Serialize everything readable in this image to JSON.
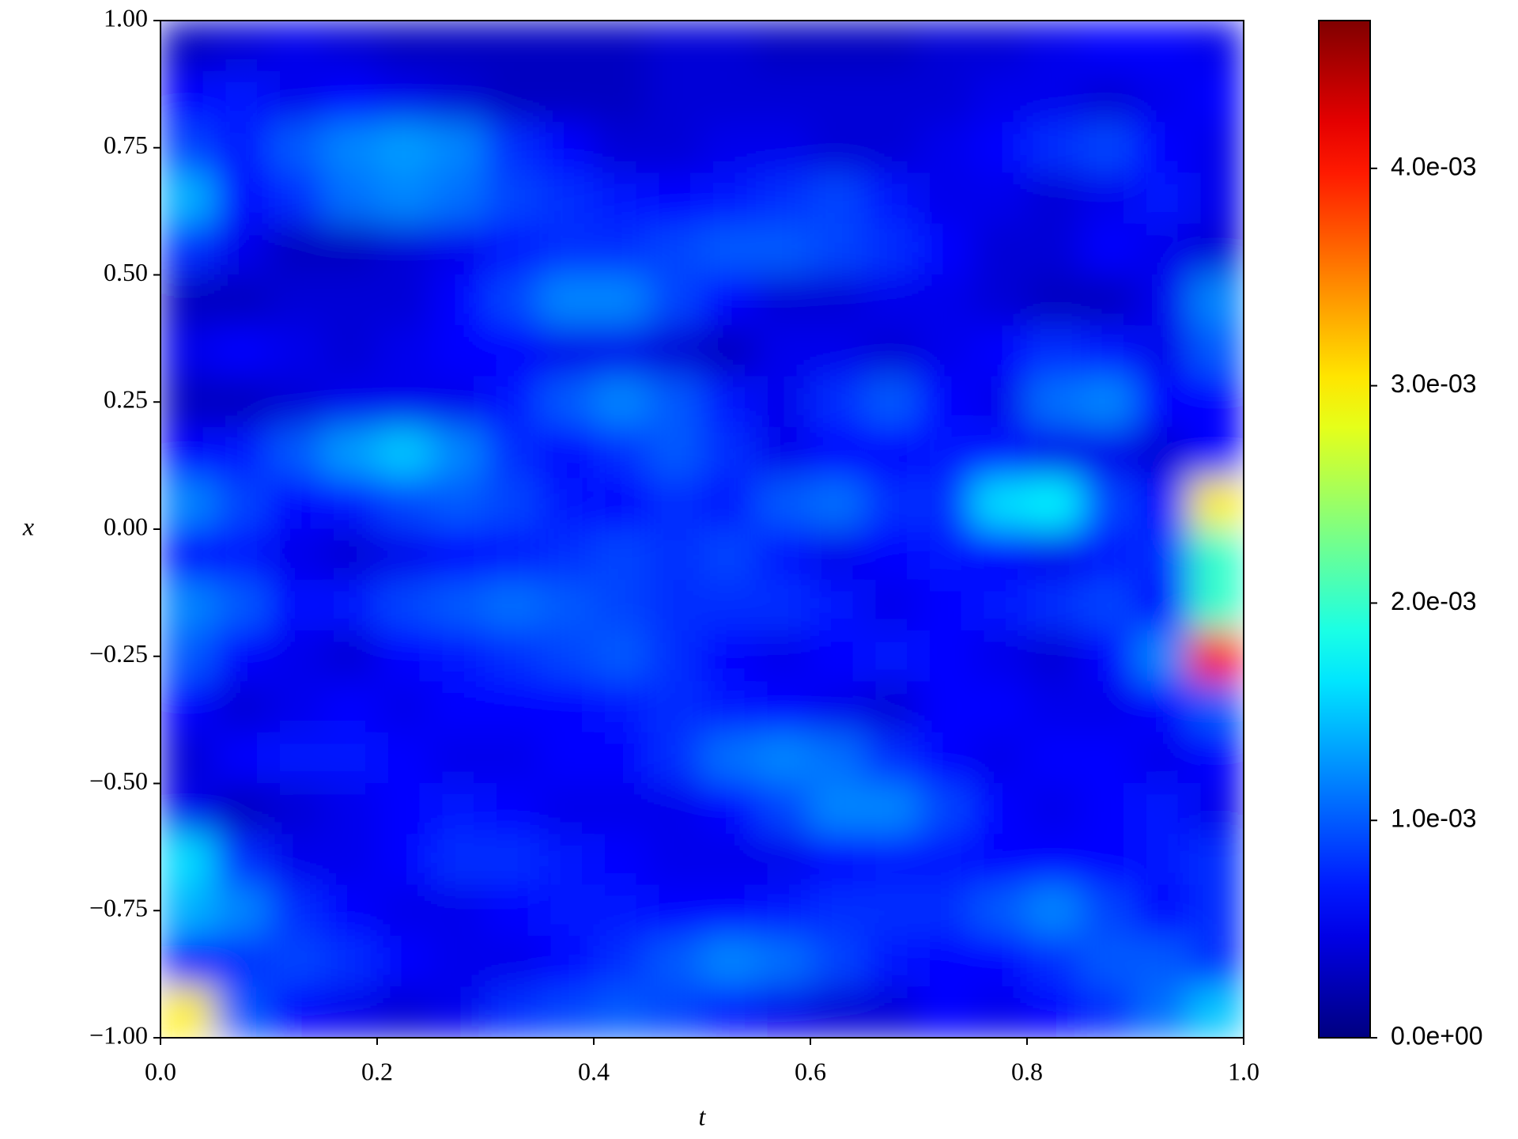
{
  "chart_data": {
    "type": "heatmap",
    "xlabel": "t",
    "ylabel": "x",
    "xlim": [
      0,
      1
    ],
    "ylim": [
      -1,
      1
    ],
    "xticks": [
      {
        "value": 0,
        "label": "0.0"
      },
      0.2,
      0.4,
      0.6,
      0.8,
      {
        "value": 1,
        "label": "1.0"
      }
    ],
    "yticks": [
      {
        "value": -1,
        "label": "−1.00"
      },
      {
        "value": -0.75,
        "label": "−0.75"
      },
      {
        "value": -0.5,
        "label": "−0.50"
      },
      {
        "value": -0.25,
        "label": "−0.25"
      },
      {
        "value": 0,
        "label": "0.00"
      },
      0.25,
      {
        "value": 0.5,
        "label": "0.50"
      },
      0.75,
      {
        "value": 1,
        "label": "1.00"
      }
    ],
    "colormap": "jet",
    "zlim": [
      0,
      0.00468
    ],
    "zticks": [
      {
        "value": 0,
        "label": "0.0e+00"
      },
      {
        "value": 0.001,
        "label": "1.0e-03"
      },
      {
        "value": 0.002,
        "label": "2.0e-03"
      },
      {
        "value": 0.003,
        "label": "3.0e-03"
      },
      {
        "value": 0.004,
        "label": "4.0e-03"
      }
    ],
    "x": [
      0.025,
      0.075,
      0.125,
      0.175,
      0.225,
      0.275,
      0.325,
      0.375,
      0.425,
      0.475,
      0.525,
      0.575,
      0.625,
      0.675,
      0.725,
      0.775,
      0.825,
      0.875,
      0.925,
      0.975
    ],
    "y": [
      0.95,
      0.85,
      0.75,
      0.65,
      0.55,
      0.45,
      0.35,
      0.25,
      0.15,
      0.05,
      -0.05,
      -0.15,
      -0.25,
      -0.35,
      -0.45,
      -0.55,
      -0.65,
      -0.75,
      -0.85,
      -0.95
    ],
    "values": [
      [
        0.0003,
        0.0004,
        0.0005,
        0.0004,
        0.0003,
        0.0003,
        0.0003,
        0.0003,
        0.0003,
        0.0004,
        0.0004,
        0.0003,
        0.0003,
        0.0003,
        0.0004,
        0.0004,
        0.0005,
        0.0006,
        0.0006,
        0.0005
      ],
      [
        0.0006,
        0.0007,
        0.0005,
        0.0006,
        0.0005,
        0.0004,
        0.0003,
        0.0003,
        0.0003,
        0.0004,
        0.0004,
        0.0004,
        0.0004,
        0.0004,
        0.0004,
        0.0005,
        0.0005,
        0.0004,
        0.0005,
        0.0006
      ],
      [
        0.0009,
        0.0007,
        0.001,
        0.0012,
        0.0013,
        0.0012,
        0.0008,
        0.0006,
        0.0004,
        0.0004,
        0.0005,
        0.0005,
        0.0004,
        0.0004,
        0.0005,
        0.0006,
        0.0008,
        0.0009,
        0.0006,
        0.0005
      ],
      [
        0.0014,
        0.0006,
        0.0008,
        0.0011,
        0.0012,
        0.0011,
        0.0009,
        0.0008,
        0.0007,
        0.0006,
        0.0007,
        0.0008,
        0.0009,
        0.0007,
        0.0005,
        0.0005,
        0.0004,
        0.0005,
        0.0007,
        0.0005
      ],
      [
        0.0008,
        0.0005,
        0.0003,
        0.0003,
        0.0004,
        0.0005,
        0.0007,
        0.0008,
        0.0008,
        0.0009,
        0.001,
        0.001,
        0.0009,
        0.0008,
        0.0006,
        0.0004,
        0.0004,
        0.0006,
        0.0005,
        0.0004
      ],
      [
        0.0003,
        0.0003,
        0.0004,
        0.0004,
        0.0004,
        0.0006,
        0.0009,
        0.0012,
        0.0012,
        0.0009,
        0.0006,
        0.0004,
        0.0004,
        0.0005,
        0.0005,
        0.0004,
        0.0003,
        0.0003,
        0.0005,
        0.0012
      ],
      [
        0.0005,
        0.0006,
        0.0005,
        0.0004,
        0.0005,
        0.0006,
        0.0006,
        0.0005,
        0.0005,
        0.0004,
        0.0003,
        0.0005,
        0.0005,
        0.0004,
        0.0005,
        0.0006,
        0.0008,
        0.0007,
        0.0005,
        0.001
      ],
      [
        0.0003,
        0.0003,
        0.0004,
        0.0005,
        0.0005,
        0.0005,
        0.0007,
        0.001,
        0.0012,
        0.001,
        0.0007,
        0.0005,
        0.0008,
        0.001,
        0.0006,
        0.0005,
        0.0011,
        0.0012,
        0.0006,
        0.0006
      ],
      [
        0.0006,
        0.0007,
        0.001,
        0.0013,
        0.0015,
        0.0012,
        0.0008,
        0.0006,
        0.0008,
        0.001,
        0.0008,
        0.0005,
        0.0006,
        0.0006,
        0.0007,
        0.0007,
        0.0005,
        0.0005,
        0.0004,
        0.0006
      ],
      [
        0.0012,
        0.0009,
        0.0006,
        0.0007,
        0.0009,
        0.001,
        0.0009,
        0.0007,
        0.0006,
        0.0008,
        0.0007,
        0.001,
        0.0011,
        0.0008,
        0.0008,
        0.0016,
        0.0017,
        0.0009,
        0.0006,
        0.003
      ],
      [
        0.0006,
        0.0007,
        0.0005,
        0.0004,
        0.0005,
        0.0006,
        0.0007,
        0.0008,
        0.0009,
        0.0008,
        0.0009,
        0.0007,
        0.0005,
        0.0006,
        0.0007,
        0.0006,
        0.0005,
        0.0007,
        0.0008,
        0.002
      ],
      [
        0.0012,
        0.001,
        0.0006,
        0.0007,
        0.0009,
        0.001,
        0.0011,
        0.001,
        0.0009,
        0.0008,
        0.0008,
        0.0008,
        0.0007,
        0.0005,
        0.0006,
        0.0007,
        0.0008,
        0.0009,
        0.0006,
        0.002
      ],
      [
        0.001,
        0.0006,
        0.0005,
        0.0004,
        0.0006,
        0.0007,
        0.0008,
        0.0009,
        0.001,
        0.0008,
        0.0006,
        0.0005,
        0.0006,
        0.0007,
        0.0006,
        0.0005,
        0.0004,
        0.0006,
        0.0012,
        0.004
      ],
      [
        0.0006,
        0.0004,
        0.0005,
        0.0006,
        0.0005,
        0.0006,
        0.0006,
        0.0006,
        0.0007,
        0.0008,
        0.0007,
        0.0006,
        0.0005,
        0.0004,
        0.0006,
        0.0006,
        0.0005,
        0.0005,
        0.0006,
        0.001
      ],
      [
        0.0004,
        0.0006,
        0.0007,
        0.0007,
        0.0006,
        0.0005,
        0.0005,
        0.0006,
        0.0006,
        0.0008,
        0.0011,
        0.0012,
        0.0011,
        0.0008,
        0.0006,
        0.0005,
        0.0006,
        0.0006,
        0.0005,
        0.0006
      ],
      [
        0.0005,
        0.0003,
        0.0004,
        0.0005,
        0.0006,
        0.0007,
        0.0006,
        0.0005,
        0.0005,
        0.0005,
        0.0006,
        0.0009,
        0.0012,
        0.0012,
        0.0009,
        0.0006,
        0.0005,
        0.0006,
        0.0007,
        0.0005
      ],
      [
        0.0016,
        0.0008,
        0.0005,
        0.0005,
        0.0006,
        0.0008,
        0.0008,
        0.0007,
        0.0006,
        0.0005,
        0.0005,
        0.0005,
        0.0006,
        0.0007,
        0.0007,
        0.0006,
        0.0006,
        0.0006,
        0.0007,
        0.0008
      ],
      [
        0.0014,
        0.0012,
        0.0008,
        0.0006,
        0.0005,
        0.0005,
        0.0006,
        0.0007,
        0.0007,
        0.0006,
        0.0006,
        0.0007,
        0.0008,
        0.0008,
        0.0008,
        0.001,
        0.0012,
        0.0009,
        0.0006,
        0.0008
      ],
      [
        0.0007,
        0.0008,
        0.0009,
        0.0008,
        0.0006,
        0.0005,
        0.0005,
        0.0006,
        0.0008,
        0.001,
        0.0012,
        0.0011,
        0.0009,
        0.0007,
        0.0006,
        0.0006,
        0.0008,
        0.001,
        0.001,
        0.0008
      ],
      [
        0.003,
        0.001,
        0.0006,
        0.0005,
        0.0004,
        0.0005,
        0.0008,
        0.0009,
        0.001,
        0.0009,
        0.0007,
        0.0005,
        0.0004,
        0.0004,
        0.0006,
        0.0005,
        0.0006,
        0.0008,
        0.0011,
        0.0015
      ]
    ]
  }
}
